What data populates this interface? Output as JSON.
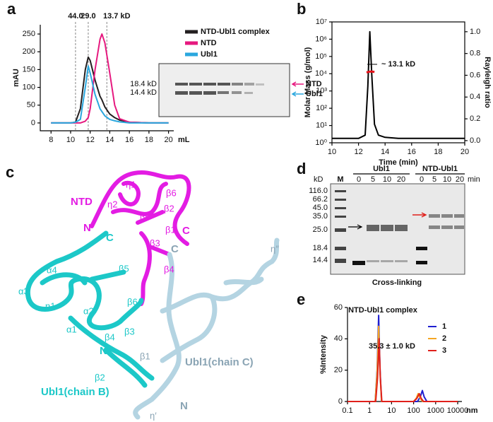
{
  "panels": [
    "a",
    "b",
    "c",
    "d",
    "e"
  ],
  "chart_data": [
    {
      "type": "line",
      "x": [
        8,
        10,
        10.5,
        11,
        11.5,
        11.8,
        12,
        12.5,
        13,
        13.2,
        13.5,
        14,
        14.5,
        15,
        16,
        18,
        20
      ],
      "xlim": [
        6.9,
        20.1
      ],
      "xticks": [
        8,
        10,
        12,
        14,
        16,
        18,
        20
      ],
      "ylim": [
        -22,
        276
      ],
      "yticks": [
        0,
        50,
        100,
        150,
        200,
        250
      ],
      "x_label": "mL",
      "y_label": "mAU",
      "legend": "upper right",
      "series": [
        {
          "name": "NTD-Ubl1 complex",
          "color": "#231f20",
          "values": [
            0,
            0,
            2,
            40,
            150,
            185,
            175,
            120,
            75,
            65,
            45,
            25,
            15,
            8,
            2,
            0,
            0
          ]
        },
        {
          "name": "NTD",
          "color": "#e6197f",
          "values": [
            0,
            0,
            0,
            0,
            5,
            15,
            40,
            150,
            235,
            250,
            225,
            140,
            50,
            12,
            2,
            0,
            0
          ]
        },
        {
          "name": "Ubl1",
          "color": "#2aa7de",
          "values": [
            0,
            0,
            2,
            10,
            100,
            160,
            140,
            80,
            40,
            32,
            20,
            10,
            6,
            3,
            0,
            0,
            0
          ]
        }
      ],
      "markers": [
        {
          "x": 10.5,
          "label": "44.0"
        },
        {
          "x": 11.8,
          "label": "29.0"
        },
        {
          "x": 13.7,
          "label": "13.7 kD"
        }
      ],
      "inset": {
        "size_labels": [
          "18.4 kD",
          "14.4 kD"
        ],
        "band_labels": [
          "NTD",
          "Ubl1"
        ]
      }
    },
    {
      "type": "line",
      "log_y": true,
      "xlim": [
        10,
        20
      ],
      "xticks": [
        10,
        12,
        14,
        16,
        18,
        20
      ],
      "ylim": [
        1,
        10000000
      ],
      "yticks": [
        {
          "value": 1,
          "label": "10⁰"
        },
        {
          "value": 10,
          "label": "10¹"
        },
        {
          "value": 100,
          "label": "10²"
        },
        {
          "value": 1000,
          "label": "10³"
        },
        {
          "value": 10000,
          "label": "10⁴"
        },
        {
          "value": 100000,
          "label": "10⁵"
        },
        {
          "value": 1000000,
          "label": "10⁶"
        },
        {
          "value": 10000000,
          "label": "10⁷"
        }
      ],
      "y2lim": [
        -0.02,
        1.09
      ],
      "y2ticks": [
        {
          "value": 0,
          "label": "0.0"
        },
        0.2,
        0.4,
        0.6,
        0.8,
        {
          "value": 1,
          "label": "1.0"
        }
      ],
      "x_label": "Time (min)",
      "y_label": "Molar Mass (g/mol)",
      "y2_label": "Rayleigh ratio",
      "annotation": "~ 13.1 kD",
      "series": [
        {
          "color": "#000000",
          "axis": "y2",
          "x": [
            10,
            12,
            12.5,
            12.7,
            12.85,
            13,
            13.2,
            13.5,
            14,
            15,
            20
          ],
          "values": [
            0.02,
            0.02,
            0.05,
            0.5,
            1.0,
            0.6,
            0.15,
            0.05,
            0.03,
            0.02,
            0.02
          ]
        },
        {
          "color": "#e8141b",
          "x": [
            12.6,
            12.8,
            13,
            13.2
          ],
          "values": [
            12000,
            13000,
            13500,
            12500
          ]
        }
      ]
    },
    {
      "type": "line",
      "log_x": true,
      "xlim": [
        0.1,
        10000
      ],
      "xticks": [
        0.1,
        1,
        10,
        100,
        1000,
        10000
      ],
      "ylim": [
        0,
        60
      ],
      "yticks": [
        0,
        20,
        40,
        60
      ],
      "x_label": "nm",
      "y_label": "%Intensity",
      "title": "NTD-Ubl1 complex",
      "annotation": "35.3 ± 1.0 kD",
      "legend": "right",
      "series": [
        {
          "name": "1",
          "color": "#1f1fd0",
          "x": [
            0.1,
            1.8,
            2.2,
            2.6,
            3,
            3.5,
            100,
            150,
            200,
            250,
            300,
            400,
            10000
          ],
          "values": [
            0,
            0,
            20,
            55,
            20,
            0,
            0,
            0,
            3,
            7,
            3,
            0,
            0
          ]
        },
        {
          "name": "2",
          "color": "#f5a623",
          "x": [
            0.1,
            1.8,
            2.2,
            2.6,
            3,
            3.5,
            100,
            130,
            160,
            200,
            260,
            10000
          ],
          "values": [
            0,
            0,
            18,
            48,
            18,
            0,
            0,
            2,
            5,
            2,
            0,
            0
          ]
        },
        {
          "name": "3",
          "color": "#e0201b",
          "x": [
            0.1,
            1.9,
            2.3,
            2.7,
            3.1,
            3.6,
            100,
            140,
            180,
            220,
            280,
            10000
          ],
          "values": [
            0,
            0,
            15,
            40,
            15,
            0,
            0,
            2,
            5,
            2,
            0,
            0
          ]
        }
      ]
    }
  ],
  "structure": {
    "labels": [
      "NTD",
      "η1",
      "β6",
      "η2",
      "β2",
      "β5",
      "N",
      "C",
      "β1",
      "β3",
      "β4",
      "C",
      "C",
      "α4",
      "α3",
      "β5",
      "η1",
      "α2",
      "β6",
      "α1",
      "β4",
      "β3",
      "N",
      "β1",
      "β2",
      "Ubl1(chain B)",
      "Ubl1(chain C)",
      "N",
      "η′",
      "η″"
    ]
  },
  "gel": {
    "unit": "kD",
    "marker_lane": "M",
    "groups": [
      {
        "name": "Ubl1",
        "times": [
          "0",
          "5",
          "10",
          "20"
        ]
      },
      {
        "name": "NTD-Ubl1",
        "times": [
          "0",
          "5",
          "10",
          "20"
        ]
      }
    ],
    "time_unit": "min",
    "marker_sizes": [
      "116.0",
      "66.2",
      "45.0",
      "35.0",
      "25.0",
      "18.4",
      "14.4"
    ],
    "caption": "Cross-linking"
  }
}
